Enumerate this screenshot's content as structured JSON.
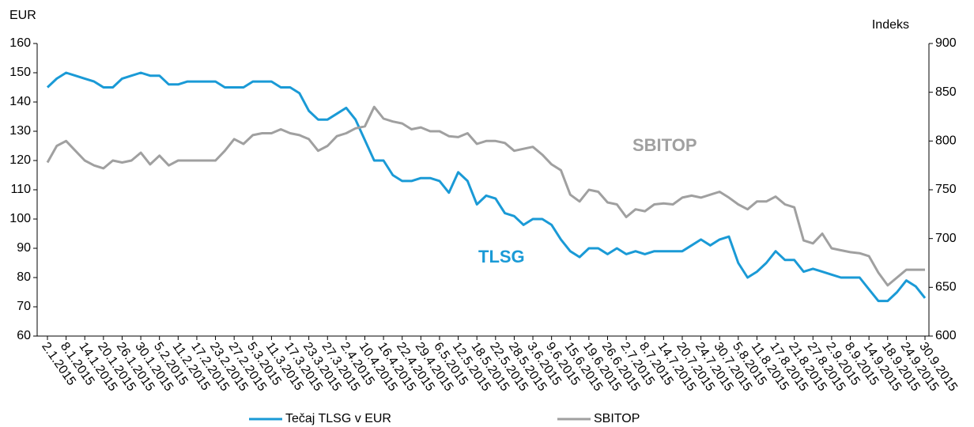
{
  "chart_data": {
    "type": "line",
    "y_label": "EUR",
    "y2_label": "Indeks",
    "categories": [
      "2.1.2015",
      null,
      "8.1.2015",
      null,
      "14.1.2015",
      null,
      "20.1.2015",
      null,
      "26.1.2015",
      null,
      "30.1.2015",
      null,
      "5.2.2015",
      null,
      "11.2.2015",
      null,
      "17.2.2015",
      null,
      "23.2.2015",
      null,
      "27.2.2015",
      null,
      "5.3.2015",
      null,
      "11.3.2015",
      null,
      "17.3.2015",
      null,
      "23.3.2015",
      null,
      "27.3.2015",
      null,
      "2.4.2015",
      null,
      "10.4.2015",
      null,
      "16.4.2015",
      null,
      "22.4.2015",
      null,
      "29.4.2015",
      null,
      "6.5.2015",
      null,
      "12.5.2015",
      null,
      "18.5.2015",
      null,
      "22.5.2015",
      null,
      "28.5.2015",
      null,
      "3.6.2015",
      null,
      "9.6.2015",
      null,
      "15.6.2015",
      null,
      "19.6.2015",
      null,
      "26.6.2015",
      null,
      "2.7.2015",
      null,
      "8.7.2015",
      null,
      "14.7.2015",
      null,
      "20.7.2015",
      null,
      "24.7.2015",
      null,
      "30.7.2015",
      null,
      "5.8.2015",
      null,
      "11.8.2015",
      null,
      "17.8.2015",
      null,
      "21.8.2015",
      null,
      "27.8.2015",
      null,
      "2.9.2015",
      null,
      "8.9.2015",
      null,
      "14.9.2015",
      null,
      "18.9.2015",
      null,
      "24.9.2015",
      null,
      "30.9.2015"
    ],
    "series": [
      {
        "name": "Tečaj TLSG v EUR",
        "color": "#1a9ad6",
        "axis": "y",
        "values": [
          145,
          148,
          150,
          149,
          148,
          147,
          145,
          145,
          148,
          149,
          150,
          149,
          149,
          146,
          146,
          147,
          147,
          147,
          147,
          145,
          145,
          145,
          147,
          147,
          147,
          145,
          145,
          143,
          137,
          134,
          134,
          136,
          138,
          134,
          127,
          120,
          120,
          115,
          113,
          113,
          114,
          114,
          113,
          109,
          116,
          113,
          105,
          108,
          107,
          102,
          101,
          98,
          100,
          100,
          98,
          93,
          89,
          87,
          90,
          90,
          88,
          90,
          88,
          89,
          88,
          89,
          89,
          89,
          89,
          91,
          93,
          91,
          93,
          94,
          85,
          80,
          82,
          85,
          89,
          86,
          86,
          82,
          83,
          82,
          81,
          80,
          80,
          80,
          76,
          72,
          72,
          75,
          79,
          77,
          73
        ]
      },
      {
        "name": "SBITOP",
        "color": "#a0a0a0",
        "axis": "y2",
        "values": [
          778,
          795,
          800,
          790,
          780,
          775,
          772,
          780,
          778,
          780,
          788,
          776,
          785,
          775,
          780,
          780,
          780,
          780,
          780,
          790,
          802,
          797,
          806,
          808,
          808,
          812,
          808,
          806,
          802,
          790,
          795,
          805,
          808,
          813,
          815,
          835,
          823,
          820,
          818,
          812,
          814,
          810,
          810,
          805,
          804,
          808,
          797,
          800,
          800,
          798,
          790,
          792,
          794,
          786,
          776,
          770,
          745,
          738,
          750,
          748,
          737,
          735,
          722,
          730,
          728,
          735,
          736,
          735,
          742,
          744,
          742,
          745,
          748,
          742,
          735,
          730,
          738,
          738,
          743,
          735,
          732,
          698,
          695,
          705,
          690,
          688,
          686,
          685,
          682,
          665,
          652,
          660,
          668,
          668,
          668
        ]
      }
    ],
    "annotations": [
      {
        "text": "TLSG",
        "color": "#1a9ad6"
      },
      {
        "text": "SBITOP",
        "color": "#a0a0a0"
      }
    ],
    "ylim": [
      60,
      160
    ],
    "yticks": [
      60,
      70,
      80,
      90,
      100,
      110,
      120,
      130,
      140,
      150,
      160
    ],
    "y2lim": [
      600,
      900
    ],
    "y2ticks": [
      600,
      650,
      700,
      750,
      800,
      850,
      900
    ],
    "grid": false,
    "legend": "bottom"
  }
}
